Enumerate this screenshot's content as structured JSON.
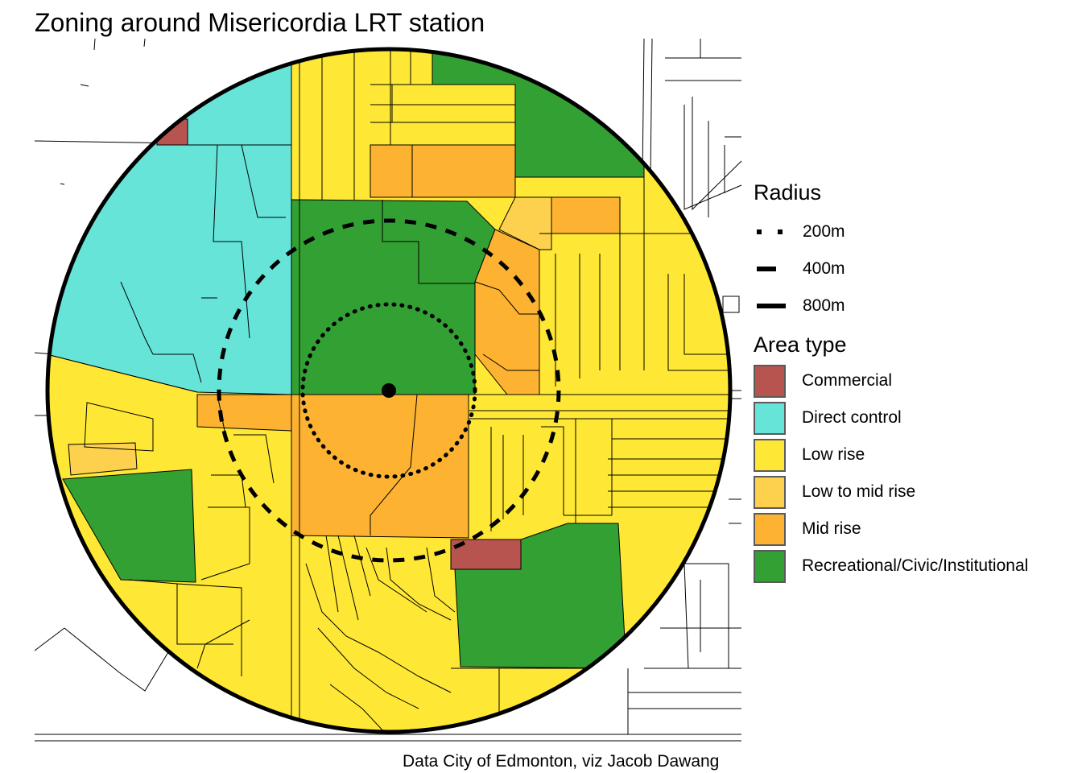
{
  "title": "Zoning around Misericordia LRT station",
  "caption": "Data City of Edmonton, viz Jacob Dawang",
  "legend": {
    "radius": {
      "title": "Radius",
      "items": [
        {
          "label": "200m",
          "line": "dotted"
        },
        {
          "label": "400m",
          "line": "dashed"
        },
        {
          "label": "800m",
          "line": "solid"
        }
      ]
    },
    "area_type": {
      "title": "Area type",
      "items": [
        {
          "label": "Commercial",
          "color": "#B85450"
        },
        {
          "label": "Direct control",
          "color": "#66E4D8"
        },
        {
          "label": "Low rise",
          "color": "#FFE835"
        },
        {
          "label": "Low to mid rise",
          "color": "#FDD14E"
        },
        {
          "label": "Mid rise",
          "color": "#FDB331"
        },
        {
          "label": "Recreational/Civic/Institutional",
          "color": "#33A033"
        }
      ]
    }
  }
}
